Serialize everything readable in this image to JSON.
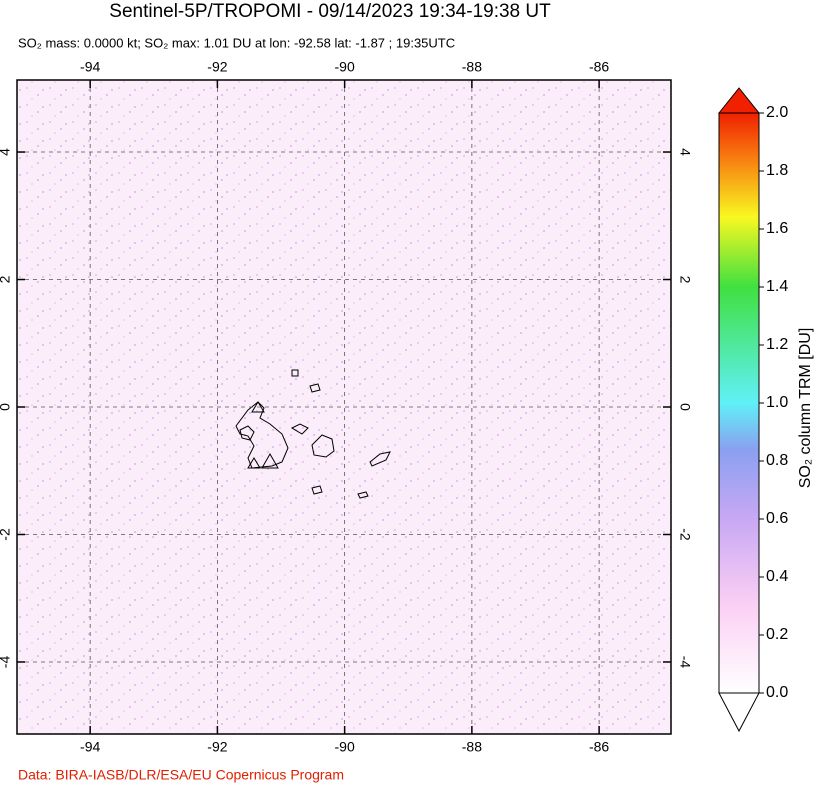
{
  "chart_data": {
    "type": "map",
    "title": "Sentinel-5P/TROPOMI - 09/14/2023 19:34-19:38 UT",
    "subtitle": "SO₂ mass: 0.0000 kt; SO₂ max: 1.01 DU at lon: -92.58 lat: -1.87 ; 19:35UTC",
    "xlim": [
      -95.15,
      -84.87
    ],
    "ylim": [
      -5.13,
      5.13
    ],
    "xticks": [
      -94,
      -92,
      -90,
      -88,
      -86
    ],
    "yticks": [
      4,
      2,
      0,
      -2,
      -4
    ],
    "grid": true,
    "colorbar": {
      "label": "SO₂ column TRM [DU]",
      "lim": [
        0,
        2
      ],
      "ticks": [
        {
          "value": 0,
          "label": "0.0"
        },
        {
          "value": 0.2,
          "label": "0.2"
        },
        {
          "value": 0.4,
          "label": "0.4"
        },
        {
          "value": 0.6,
          "label": "0.6"
        },
        {
          "value": 0.8,
          "label": "0.8"
        },
        {
          "value": 1.0,
          "label": "1.0"
        },
        {
          "value": 1.2,
          "label": "1.2"
        },
        {
          "value": 1.4,
          "label": "1.4"
        },
        {
          "value": 1.6,
          "label": "1.6"
        },
        {
          "value": 1.8,
          "label": "1.8"
        },
        {
          "value": 2.0,
          "label": "2.0"
        }
      ]
    },
    "credit": "Data: BIRA-IASB/DLR/ESA/EU Copernicus Program"
  }
}
